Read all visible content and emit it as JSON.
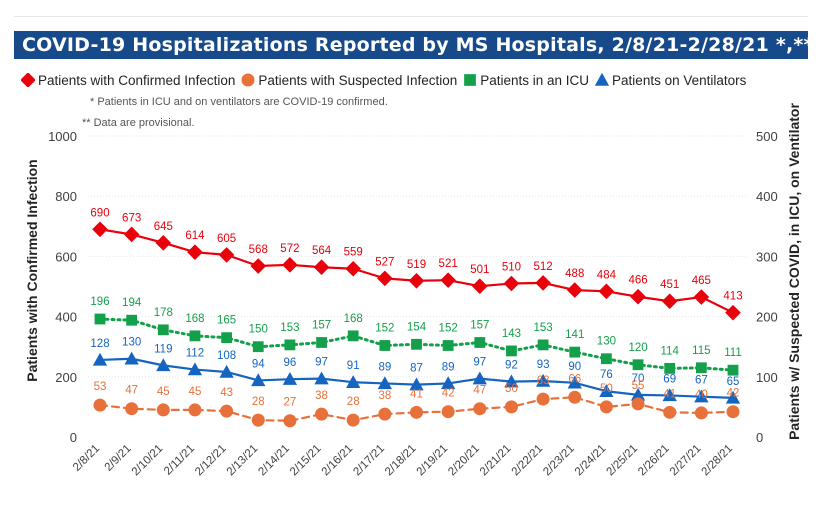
{
  "title": "COVID-19 Hospitalizations Reported by MS Hospitals, 2/8/21-2/28/21 *,**",
  "footnotes": [
    "* Patients in ICU and on ventilators are COVID-19 confirmed.",
    "** Data are provisional."
  ],
  "legend_icons": [
    "diamond-marker",
    "circle-marker",
    "square-marker",
    "triangle-marker"
  ],
  "chart_data": {
    "type": "line",
    "x": [
      "2/8/21",
      "2/9/21",
      "2/10/21",
      "2/11/21",
      "2/12/21",
      "2/13/21",
      "2/14/21",
      "2/15/21",
      "2/16/21",
      "2/17/21",
      "2/18/21",
      "2/19/21",
      "2/20/21",
      "2/21/21",
      "2/22/21",
      "2/23/21",
      "2/24/21",
      "2/25/21",
      "2/26/21",
      "2/27/21",
      "2/28/21"
    ],
    "ylabel": "Patients with Confirmed Infection",
    "ylabel_right": "Patients w/ Suspected COVID, in ICU, on Ventilator",
    "ylim": [
      0,
      1000
    ],
    "y_ticks": [
      0,
      200,
      400,
      600,
      800,
      1000
    ],
    "ylim_right": [
      0,
      500
    ],
    "y_ticks_right": [
      0,
      100,
      200,
      300,
      400,
      500
    ],
    "grid": true,
    "legend_position": "top-left",
    "series": [
      {
        "name": "Patients with Confirmed Infection",
        "axis": "left",
        "color": "#e8000b",
        "marker": "diamond",
        "line": "solid",
        "values": [
          690,
          673,
          645,
          614,
          605,
          568,
          572,
          564,
          559,
          527,
          519,
          521,
          501,
          510,
          512,
          488,
          484,
          466,
          451,
          465,
          413
        ]
      },
      {
        "name": "Patients with Suspected Infection",
        "axis": "right",
        "color": "#e8703a",
        "marker": "circle",
        "line": "dashed",
        "values": [
          53,
          47,
          45,
          45,
          43,
          28,
          27,
          38,
          28,
          38,
          41,
          42,
          47,
          50,
          63,
          66,
          50,
          55,
          41,
          40,
          42
        ]
      },
      {
        "name": "Patients in an ICU",
        "axis": "right",
        "color": "#14a04b",
        "marker": "square",
        "line": "dotted",
        "values": [
          196,
          194,
          178,
          168,
          165,
          150,
          153,
          157,
          168,
          152,
          154,
          152,
          157,
          143,
          153,
          141,
          130,
          120,
          114,
          115,
          111
        ]
      },
      {
        "name": "Patients on Ventilators",
        "axis": "right",
        "color": "#1565c0",
        "marker": "triangle",
        "line": "solid",
        "values": [
          128,
          130,
          119,
          112,
          108,
          94,
          96,
          97,
          91,
          89,
          87,
          89,
          97,
          92,
          93,
          90,
          76,
          70,
          69,
          67,
          65
        ]
      }
    ]
  }
}
